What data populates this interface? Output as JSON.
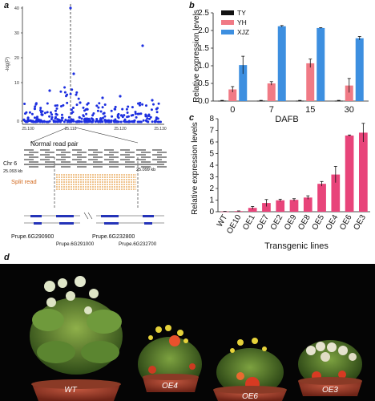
{
  "panels": {
    "a": "a",
    "b": "b",
    "c": "c",
    "d": "d"
  },
  "manhattan": {
    "ylabel": "-log(P)",
    "yticks": [
      "40",
      "30",
      "20",
      "10",
      "0"
    ],
    "xticks": [
      "25.100",
      "25.110",
      "25.120",
      "25.130"
    ],
    "normal_read_pair": "Normal read pair",
    "chrom": "Chr 6",
    "left_coord": "25.093 kb",
    "right_coord": "25.099 kb",
    "split_read": "Split read",
    "genes_top": [
      "Prupe.6G290900",
      "Prupe.6G232800"
    ],
    "genes_bottom": [
      "Prupe.6G291000",
      "Prupe.6G232700"
    ]
  },
  "chart_data": [
    {
      "type": "bar",
      "title": "",
      "xlabel": "DAFB",
      "ylabel": "Relative expression levels",
      "categories": [
        "0",
        "7",
        "15",
        "30"
      ],
      "ylim": [
        0,
        2.5
      ],
      "yticks": [
        0,
        0.5,
        1.0,
        1.5,
        2.0,
        2.5
      ],
      "legend_position": "top-left",
      "series": [
        {
          "name": "TY",
          "color": "#111111",
          "values": [
            0.01,
            0.01,
            0.01,
            0.01
          ],
          "errors": [
            0.01,
            0.01,
            0.01,
            0.01
          ]
        },
        {
          "name": "YH",
          "color": "#f07a85",
          "values": [
            0.33,
            0.5,
            1.07,
            0.44
          ],
          "errors": [
            0.08,
            0.05,
            0.12,
            0.2
          ]
        },
        {
          "name": "XJZ",
          "color": "#3d8fe0",
          "values": [
            1.02,
            2.12,
            2.07,
            1.78
          ],
          "errors": [
            0.25,
            0.02,
            0.01,
            0.05
          ]
        }
      ]
    },
    {
      "type": "bar",
      "title": "",
      "xlabel": "Transgenic lines",
      "ylabel": "Relative expression levels",
      "categories": [
        "WT",
        "OE10",
        "OE1",
        "OE7",
        "OE2",
        "OE9",
        "OE8",
        "OE5",
        "OE4",
        "OE6",
        "OE3"
      ],
      "ylim": [
        0,
        8
      ],
      "yticks": [
        0,
        1,
        2,
        3,
        4,
        5,
        6,
        7,
        8
      ],
      "color": "#e8447a",
      "values": [
        0.02,
        0.05,
        0.33,
        0.75,
        0.98,
        1.02,
        1.22,
        2.4,
        3.2,
        6.55,
        6.8
      ],
      "errors": [
        0.01,
        0.02,
        0.12,
        0.3,
        0.1,
        0.1,
        0.15,
        0.2,
        0.7,
        0.05,
        0.8
      ]
    }
  ],
  "photo_labels": [
    "WT",
    "OE4",
    "OE6",
    "OE3"
  ]
}
